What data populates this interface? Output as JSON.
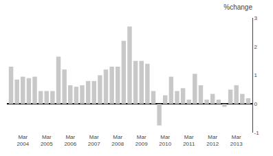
{
  "chart_data": {
    "type": "bar",
    "title": "%change",
    "categories": [
      null,
      null,
      "Mar\n2004",
      null,
      null,
      null,
      "Mar\n2005",
      null,
      null,
      null,
      "Mar\n2006",
      null,
      null,
      null,
      "Mar\n2007",
      null,
      null,
      null,
      "Mar\n2008",
      null,
      null,
      null,
      "Mar\n2009",
      null,
      null,
      null,
      "Mar\n2010",
      null,
      null,
      null,
      "Mar\n2011",
      null,
      null,
      null,
      "Mar\n2012",
      null,
      null,
      null,
      "Mar\n2013",
      null,
      null
    ],
    "values": [
      1.3,
      0.85,
      0.95,
      0.9,
      0.95,
      0.45,
      0.45,
      0.45,
      1.65,
      1.2,
      0.65,
      0.6,
      0.65,
      0.8,
      0.8,
      1.0,
      1.2,
      1.3,
      1.3,
      2.2,
      2.7,
      1.5,
      1.5,
      1.4,
      0.45,
      -0.75,
      0.3,
      0.95,
      0.45,
      0.55,
      0.15,
      1.05,
      0.65,
      0.15,
      0.35,
      0.15,
      -0.1,
      0.5,
      0.65,
      0.35,
      0.2
    ],
    "color": "#c8c8c8",
    "ylim": [
      -1,
      3
    ],
    "yticks": [
      -1,
      0,
      1,
      2,
      3
    ],
    "grid": false
  }
}
